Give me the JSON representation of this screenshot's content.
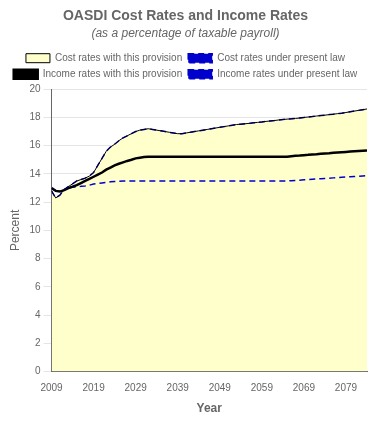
{
  "chart_data": {
    "type": "line",
    "title": "OASDI Cost Rates and Income Rates",
    "subtitle": "(as a percentage of taxable payroll)",
    "xlabel": "Year",
    "ylabel": "Percent",
    "xlim": [
      2009,
      2084
    ],
    "xticks": [
      2009,
      2019,
      2029,
      2039,
      2049,
      2059,
      2069,
      2079
    ],
    "ylim": [
      0,
      20
    ],
    "yticks": [
      0,
      2,
      4,
      6,
      8,
      10,
      12,
      14,
      16,
      18,
      20
    ],
    "grid": "y",
    "legend": "top",
    "x": [
      2009,
      2010,
      2011,
      2012,
      2013,
      2014,
      2015,
      2016,
      2017,
      2018,
      2019,
      2020,
      2021,
      2022,
      2023,
      2024,
      2025,
      2026,
      2027,
      2028,
      2029,
      2030,
      2031,
      2032,
      2033,
      2034,
      2035,
      2036,
      2037,
      2038,
      2039,
      2040,
      2041,
      2042,
      2043,
      2044,
      2045,
      2046,
      2047,
      2048,
      2049,
      2050,
      2051,
      2052,
      2053,
      2054,
      2055,
      2056,
      2057,
      2058,
      2059,
      2060,
      2061,
      2062,
      2063,
      2064,
      2065,
      2066,
      2067,
      2068,
      2069,
      2070,
      2071,
      2072,
      2073,
      2074,
      2075,
      2076,
      2077,
      2078,
      2079,
      2080,
      2081,
      2082,
      2083,
      2084
    ],
    "series": [
      {
        "name": "Cost rates with this provision",
        "type": "area",
        "color": "#ffffcc",
        "line_style": "solid",
        "values": [
          12.8,
          12.3,
          12.5,
          12.9,
          13.1,
          13.3,
          13.5,
          13.6,
          13.7,
          13.85,
          14.1,
          14.6,
          15.1,
          15.6,
          15.9,
          16.1,
          16.35,
          16.55,
          16.7,
          16.85,
          17.0,
          17.1,
          17.15,
          17.2,
          17.15,
          17.1,
          17.05,
          17.0,
          16.95,
          16.9,
          16.85,
          16.85,
          16.9,
          16.95,
          17.0,
          17.05,
          17.1,
          17.15,
          17.2,
          17.25,
          17.3,
          17.35,
          17.4,
          17.45,
          17.5,
          17.52,
          17.55,
          17.58,
          17.62,
          17.65,
          17.68,
          17.72,
          17.75,
          17.78,
          17.82,
          17.85,
          17.88,
          17.9,
          17.93,
          17.96,
          18.0,
          18.03,
          18.06,
          18.1,
          18.13,
          18.16,
          18.2,
          18.23,
          18.27,
          18.3,
          18.35,
          18.4,
          18.45,
          18.5,
          18.55,
          18.6
        ]
      },
      {
        "name": "Cost rates under present law",
        "type": "line",
        "color": "#0000cc",
        "line_style": "dashed",
        "values": [
          12.8,
          12.3,
          12.5,
          12.9,
          13.1,
          13.3,
          13.5,
          13.6,
          13.7,
          13.85,
          14.1,
          14.6,
          15.1,
          15.6,
          15.9,
          16.1,
          16.35,
          16.55,
          16.7,
          16.85,
          17.0,
          17.1,
          17.15,
          17.2,
          17.15,
          17.1,
          17.05,
          17.0,
          16.95,
          16.9,
          16.85,
          16.85,
          16.9,
          16.95,
          17.0,
          17.05,
          17.1,
          17.15,
          17.2,
          17.25,
          17.3,
          17.35,
          17.4,
          17.45,
          17.5,
          17.52,
          17.55,
          17.58,
          17.62,
          17.65,
          17.68,
          17.72,
          17.75,
          17.78,
          17.82,
          17.85,
          17.88,
          17.9,
          17.93,
          17.96,
          18.0,
          18.03,
          18.06,
          18.1,
          18.13,
          18.16,
          18.2,
          18.23,
          18.27,
          18.3,
          18.35,
          18.4,
          18.45,
          18.5,
          18.55,
          18.6
        ]
      },
      {
        "name": "Income rates with this provision",
        "type": "line",
        "color": "#000000",
        "line_style": "solid",
        "values": [
          13.0,
          12.8,
          12.75,
          12.85,
          13.0,
          13.1,
          13.2,
          13.35,
          13.5,
          13.65,
          13.8,
          13.95,
          14.1,
          14.3,
          14.45,
          14.6,
          14.72,
          14.82,
          14.92,
          15.0,
          15.1,
          15.15,
          15.2,
          15.22,
          15.22,
          15.22,
          15.22,
          15.22,
          15.22,
          15.22,
          15.22,
          15.22,
          15.22,
          15.22,
          15.22,
          15.22,
          15.22,
          15.22,
          15.22,
          15.22,
          15.22,
          15.22,
          15.22,
          15.22,
          15.22,
          15.22,
          15.22,
          15.22,
          15.22,
          15.22,
          15.22,
          15.22,
          15.22,
          15.22,
          15.22,
          15.22,
          15.22,
          15.25,
          15.28,
          15.3,
          15.33,
          15.35,
          15.38,
          15.4,
          15.43,
          15.45,
          15.47,
          15.5,
          15.52,
          15.54,
          15.56,
          15.58,
          15.6,
          15.62,
          15.64,
          15.66
        ]
      },
      {
        "name": "Income rates under present law",
        "type": "line",
        "color": "#0000cc",
        "line_style": "dashed",
        "values": [
          13.0,
          12.8,
          12.75,
          12.85,
          13.0,
          13.05,
          13.1,
          13.12,
          13.15,
          13.2,
          13.28,
          13.32,
          13.36,
          13.4,
          13.44,
          13.47,
          13.48,
          13.49,
          13.5,
          13.5,
          13.5,
          13.5,
          13.5,
          13.5,
          13.5,
          13.5,
          13.5,
          13.5,
          13.5,
          13.5,
          13.5,
          13.5,
          13.5,
          13.5,
          13.5,
          13.5,
          13.5,
          13.5,
          13.5,
          13.5,
          13.5,
          13.5,
          13.5,
          13.5,
          13.5,
          13.5,
          13.5,
          13.5,
          13.5,
          13.5,
          13.5,
          13.5,
          13.5,
          13.5,
          13.5,
          13.5,
          13.5,
          13.52,
          13.54,
          13.56,
          13.58,
          13.6,
          13.62,
          13.64,
          13.66,
          13.68,
          13.7,
          13.72,
          13.74,
          13.76,
          13.78,
          13.8,
          13.82,
          13.84,
          13.86,
          13.88
        ]
      }
    ]
  }
}
